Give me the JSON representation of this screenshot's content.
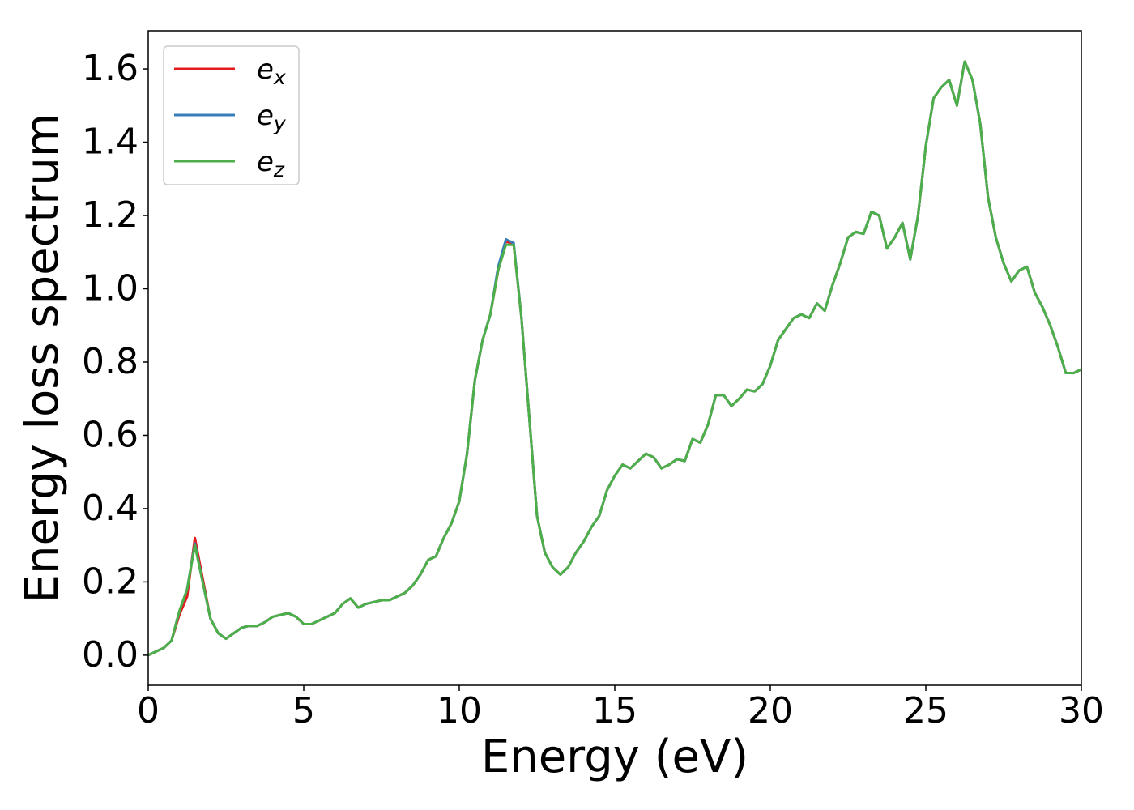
{
  "chart_data": {
    "type": "line",
    "xlabel": "Energy (eV)",
    "ylabel": "Energy loss spectrum",
    "xlim": [
      0,
      30
    ],
    "ylim": [
      -0.082,
      1.704
    ],
    "xticks": [
      0,
      5,
      10,
      15,
      20,
      25,
      30
    ],
    "yticks": [
      {
        "value": 0,
        "label": "0.0"
      },
      0.2,
      0.4,
      0.6,
      0.8,
      {
        "value": 1,
        "label": "1.0"
      },
      1.2,
      1.4,
      1.6
    ],
    "legend": "upper left",
    "grid": false,
    "x": [
      0,
      0.25,
      0.5,
      0.75,
      1,
      1.25,
      1.5,
      1.75,
      2,
      2.25,
      2.5,
      2.75,
      3,
      3.25,
      3.5,
      3.75,
      4,
      4.25,
      4.5,
      4.75,
      5,
      5.25,
      5.5,
      5.75,
      6,
      6.25,
      6.5,
      6.75,
      7,
      7.25,
      7.5,
      7.75,
      8,
      8.25,
      8.5,
      8.75,
      9,
      9.25,
      9.5,
      9.75,
      10,
      10.25,
      10.5,
      10.75,
      11,
      11.25,
      11.5,
      11.75,
      12,
      12.25,
      12.5,
      12.75,
      13,
      13.25,
      13.5,
      13.75,
      14,
      14.25,
      14.5,
      14.75,
      15,
      15.25,
      15.5,
      15.75,
      16,
      16.25,
      16.5,
      16.75,
      17,
      17.25,
      17.5,
      17.75,
      18,
      18.25,
      18.5,
      18.75,
      19,
      19.25,
      19.5,
      19.75,
      20,
      20.25,
      20.5,
      20.75,
      21,
      21.25,
      21.5,
      21.75,
      22,
      22.25,
      22.5,
      22.75,
      23,
      23.25,
      23.5,
      23.75,
      24,
      24.25,
      24.5,
      24.75,
      25,
      25.25,
      25.5,
      25.75,
      26,
      26.25,
      26.5,
      26.75,
      27,
      27.25,
      27.5,
      27.75,
      28,
      28.25,
      28.5,
      28.75,
      29,
      29.25,
      29.5,
      29.75,
      30
    ],
    "series": [
      {
        "name": "e_x",
        "color": "#e41a1c",
        "values": [
          0,
          0.01,
          0.02,
          0.04,
          0.11,
          0.16,
          0.32,
          0.21,
          0.1,
          0.06,
          0.045,
          0.06,
          0.075,
          0.08,
          0.08,
          0.09,
          0.105,
          0.11,
          0.115,
          0.105,
          0.085,
          0.085,
          0.095,
          0.105,
          0.115,
          0.14,
          0.155,
          0.13,
          0.14,
          0.145,
          0.15,
          0.15,
          0.16,
          0.17,
          0.19,
          0.22,
          0.26,
          0.27,
          0.32,
          0.36,
          0.42,
          0.55,
          0.75,
          0.86,
          0.93,
          1.05,
          1.13,
          1.12,
          0.92,
          0.65,
          0.38,
          0.28,
          0.24,
          0.22,
          0.24,
          0.28,
          0.31,
          0.35,
          0.38,
          0.45,
          0.49,
          0.52,
          0.51,
          0.53,
          0.55,
          0.54,
          0.51,
          0.52,
          0.535,
          0.53,
          0.59,
          0.58,
          0.63,
          0.71,
          0.71,
          0.68,
          0.7,
          0.725,
          0.72,
          0.74,
          0.79,
          0.86,
          0.89,
          0.92,
          0.93,
          0.92,
          0.96,
          0.94,
          1.01,
          1.07,
          1.14,
          1.155,
          1.15,
          1.21,
          1.2,
          1.11,
          1.14,
          1.18,
          1.08,
          1.2,
          1.39,
          1.52,
          1.55,
          1.57,
          1.5,
          1.62,
          1.57,
          1.45,
          1.25,
          1.14,
          1.07,
          1.02,
          1.05,
          1.06,
          0.99,
          0.95,
          0.9,
          0.84,
          0.77,
          0.77,
          0.78
        ]
      },
      {
        "name": "e_y",
        "color": "#377eb8",
        "values": [
          0,
          0.01,
          0.02,
          0.04,
          0.12,
          0.18,
          0.305,
          0.2,
          0.1,
          0.06,
          0.045,
          0.06,
          0.075,
          0.08,
          0.08,
          0.09,
          0.105,
          0.11,
          0.115,
          0.105,
          0.085,
          0.085,
          0.095,
          0.105,
          0.115,
          0.14,
          0.155,
          0.13,
          0.14,
          0.145,
          0.15,
          0.15,
          0.16,
          0.17,
          0.19,
          0.22,
          0.26,
          0.27,
          0.32,
          0.36,
          0.42,
          0.55,
          0.75,
          0.86,
          0.93,
          1.06,
          1.135,
          1.125,
          0.92,
          0.65,
          0.38,
          0.28,
          0.24,
          0.22,
          0.24,
          0.28,
          0.31,
          0.35,
          0.38,
          0.45,
          0.49,
          0.52,
          0.51,
          0.53,
          0.55,
          0.54,
          0.51,
          0.52,
          0.535,
          0.53,
          0.59,
          0.58,
          0.63,
          0.71,
          0.71,
          0.68,
          0.7,
          0.725,
          0.72,
          0.74,
          0.79,
          0.86,
          0.89,
          0.92,
          0.93,
          0.92,
          0.96,
          0.94,
          1.01,
          1.07,
          1.14,
          1.155,
          1.15,
          1.21,
          1.2,
          1.11,
          1.14,
          1.18,
          1.08,
          1.2,
          1.39,
          1.52,
          1.55,
          1.57,
          1.5,
          1.62,
          1.57,
          1.45,
          1.25,
          1.14,
          1.07,
          1.02,
          1.05,
          1.06,
          0.99,
          0.95,
          0.9,
          0.84,
          0.77,
          0.77,
          0.78
        ]
      },
      {
        "name": "e_z",
        "color": "#4daf4a",
        "values": [
          0,
          0.01,
          0.02,
          0.04,
          0.12,
          0.18,
          0.3,
          0.2,
          0.1,
          0.06,
          0.045,
          0.06,
          0.075,
          0.08,
          0.08,
          0.09,
          0.105,
          0.11,
          0.115,
          0.105,
          0.085,
          0.085,
          0.095,
          0.105,
          0.115,
          0.14,
          0.155,
          0.13,
          0.14,
          0.145,
          0.15,
          0.15,
          0.16,
          0.17,
          0.19,
          0.22,
          0.26,
          0.27,
          0.32,
          0.36,
          0.42,
          0.55,
          0.75,
          0.86,
          0.93,
          1.05,
          1.12,
          1.12,
          0.92,
          0.65,
          0.38,
          0.28,
          0.24,
          0.22,
          0.24,
          0.28,
          0.31,
          0.35,
          0.38,
          0.45,
          0.49,
          0.52,
          0.51,
          0.53,
          0.55,
          0.54,
          0.51,
          0.52,
          0.535,
          0.53,
          0.59,
          0.58,
          0.63,
          0.71,
          0.71,
          0.68,
          0.7,
          0.725,
          0.72,
          0.74,
          0.79,
          0.86,
          0.89,
          0.92,
          0.93,
          0.92,
          0.96,
          0.94,
          1.01,
          1.07,
          1.14,
          1.155,
          1.15,
          1.21,
          1.2,
          1.11,
          1.14,
          1.18,
          1.08,
          1.2,
          1.39,
          1.52,
          1.55,
          1.57,
          1.5,
          1.62,
          1.57,
          1.45,
          1.25,
          1.14,
          1.07,
          1.02,
          1.05,
          1.06,
          0.99,
          0.95,
          0.9,
          0.84,
          0.77,
          0.77,
          0.78
        ]
      }
    ]
  }
}
